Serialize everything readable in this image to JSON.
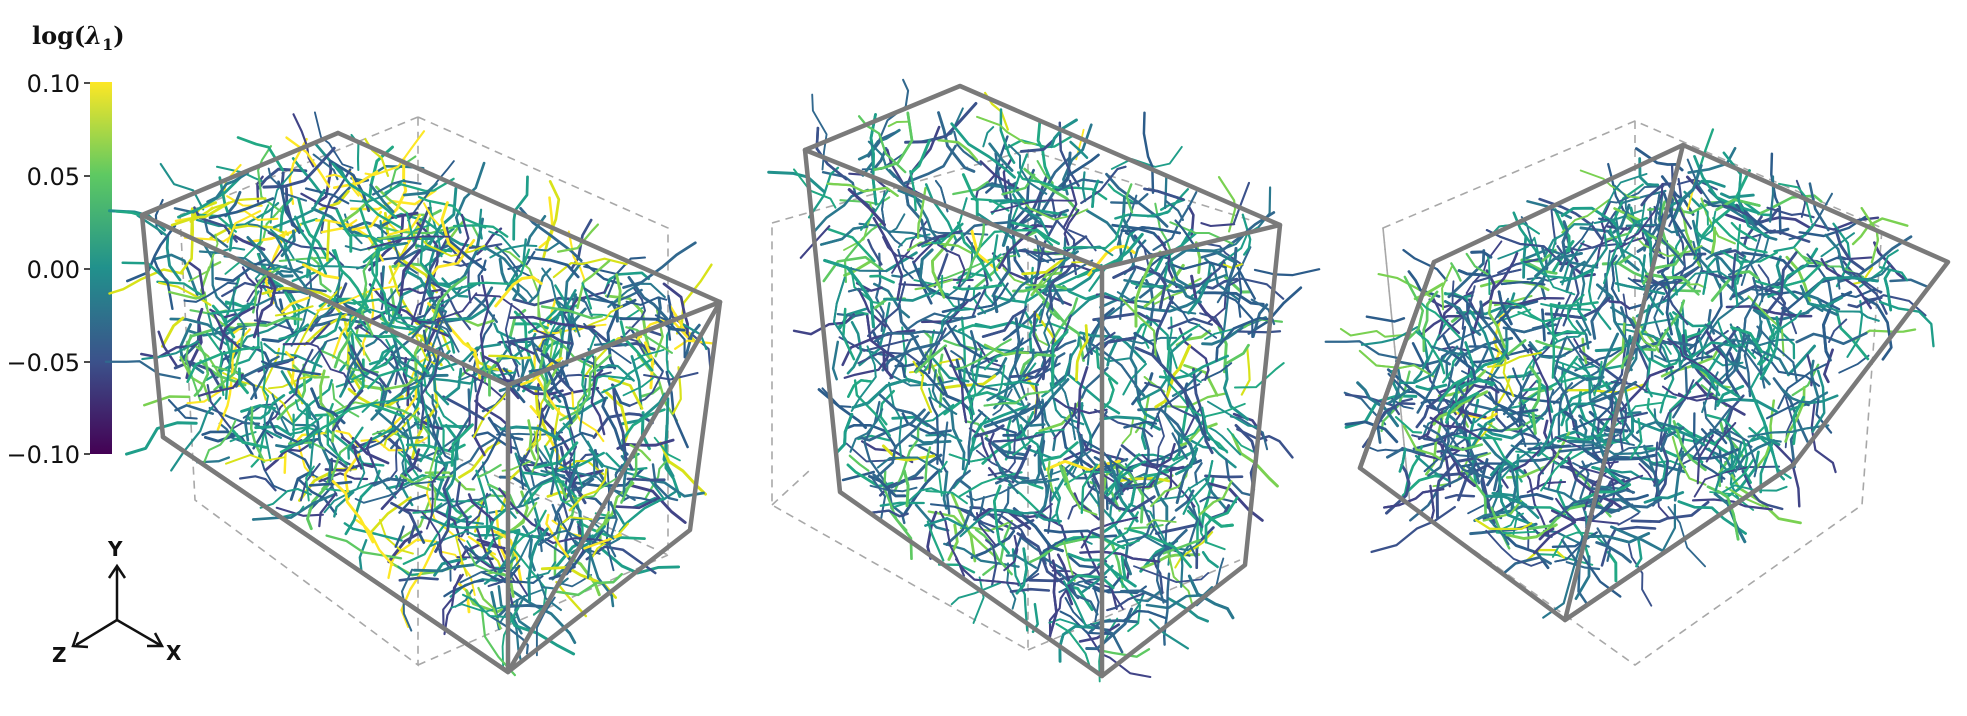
{
  "colorbar": {
    "title_base": "log(",
    "title_symbol": "λ",
    "title_sub": "1",
    "title_close": ")",
    "ticks": [
      "0.10",
      "0.05",
      "0.00",
      "−0.05",
      "−0.10"
    ],
    "range": [
      -0.1,
      0.1
    ],
    "colormap": "viridis",
    "colors": [
      "#440154",
      "#3b528b",
      "#21918c",
      "#5ec962",
      "#fde725"
    ]
  },
  "axes_triad": {
    "y": "Y",
    "x": "X",
    "z": "Z"
  },
  "panels": [
    {
      "label": "panel-1",
      "dominant_color_bias": 0.55
    },
    {
      "label": "panel-2",
      "dominant_color_bias": 0.35
    },
    {
      "label": "panel-3",
      "dominant_color_bias": 0.4
    }
  ]
}
